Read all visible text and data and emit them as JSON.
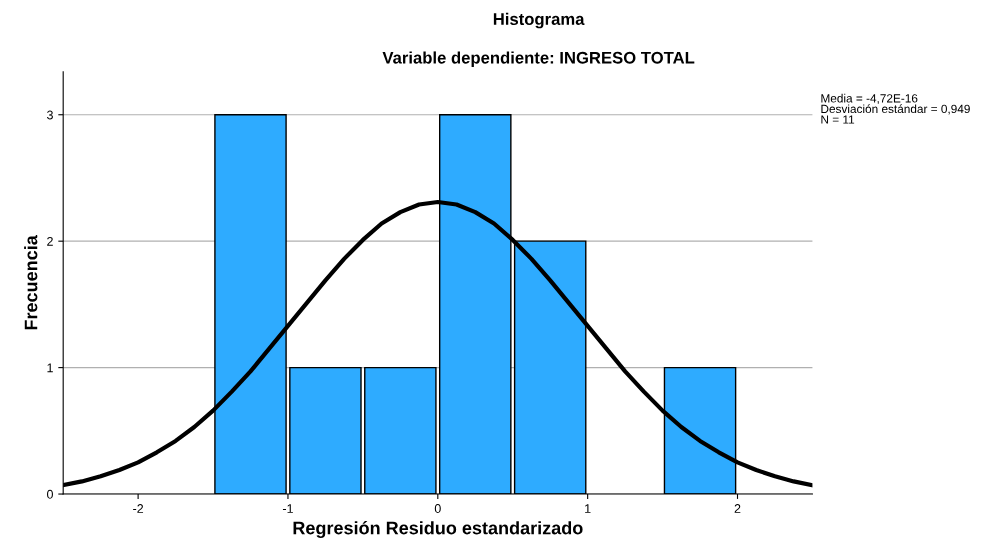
{
  "chart_data": {
    "type": "histogram",
    "title": "Histograma",
    "subtitle": "Variable dependiente: INGRESO TOTAL",
    "xlabel": "Regresión Residuo estandarizado",
    "ylabel": "Frecuencia",
    "series": [
      {
        "color": "#2eabff",
        "bins": [
          -1.5,
          -1.0,
          -0.5,
          0.0,
          0.5,
          1.0,
          1.5,
          2.0
        ],
        "values": [
          3,
          1,
          1,
          3,
          2,
          0,
          1
        ]
      },
      {
        "type": "line",
        "color": "#000000",
        "x": [
          -2.5,
          -2.375,
          -2.25,
          -2.125,
          -2.0,
          -1.875,
          -1.75,
          -1.625,
          -1.5,
          -1.375,
          -1.25,
          -1.125,
          -1.0,
          -0.875,
          -0.75,
          -0.625,
          -0.5,
          -0.375,
          -0.25,
          -0.125,
          0.0,
          0.125,
          0.25,
          0.375,
          0.5,
          0.625,
          0.75,
          0.875,
          1.0,
          1.125,
          1.25,
          1.375,
          1.5,
          1.625,
          1.75,
          1.875,
          2.0,
          2.125,
          2.25,
          2.375,
          2.5
        ],
        "values": [
          0.07,
          0.1,
          0.14,
          0.19,
          0.25,
          0.33,
          0.42,
          0.53,
          0.66,
          0.81,
          0.97,
          1.15,
          1.33,
          1.51,
          1.69,
          1.86,
          2.01,
          2.14,
          2.23,
          2.29,
          2.31,
          2.29,
          2.23,
          2.14,
          2.01,
          1.86,
          1.69,
          1.51,
          1.33,
          1.15,
          0.97,
          0.81,
          0.66,
          0.53,
          0.42,
          0.33,
          0.25,
          0.19,
          0.14,
          0.1,
          0.07
        ]
      }
    ],
    "xlim": [
      -2.5,
      2.5
    ],
    "xticks": [
      -2,
      -1,
      0,
      1,
      2
    ],
    "ylim": [
      0,
      3.34
    ],
    "yticks": [
      0,
      1,
      2,
      3
    ],
    "grid": "y",
    "annotations": [
      "Media = -4,72E-16\nDesviación estándar = 0,949\nN = 11"
    ]
  }
}
